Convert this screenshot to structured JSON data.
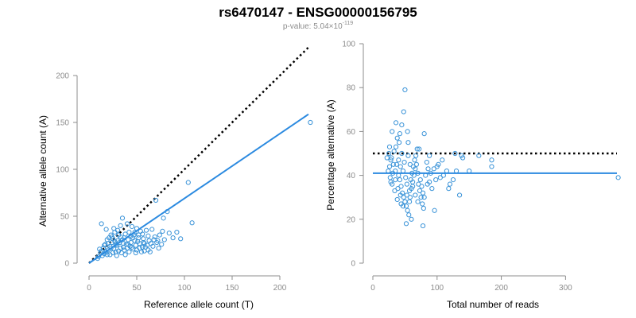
{
  "header": {
    "title": "rs6470147 - ENSG00000156795",
    "subtitle_prefix": "p-value: 5.04×10",
    "subtitle_exponent": "-119"
  },
  "colors": {
    "points": "#3a93d8",
    "fit_line": "#2b8ae0",
    "reference_line": "#000000",
    "axes": "#8c8c8c"
  },
  "chart_data": [
    {
      "type": "scatter",
      "xlabel": "Reference allele count (T)",
      "ylabel": "Alternative allele count (A)",
      "xlim": [
        0,
        230
      ],
      "ylim": [
        0,
        200
      ],
      "xticks": [
        0,
        50,
        100,
        150,
        200
      ],
      "yticks": [
        0,
        50,
        100,
        150,
        200
      ],
      "points": [
        [
          232,
          150
        ],
        [
          104,
          86
        ],
        [
          108,
          43
        ],
        [
          82,
          55
        ],
        [
          70,
          67
        ],
        [
          78,
          48
        ],
        [
          64,
          12
        ],
        [
          62,
          29
        ],
        [
          72,
          24
        ],
        [
          66,
          36
        ],
        [
          13,
          42
        ],
        [
          18,
          36
        ],
        [
          35,
          48
        ],
        [
          40,
          42
        ],
        [
          45,
          39
        ],
        [
          52,
          27
        ],
        [
          56,
          31
        ],
        [
          58,
          21
        ],
        [
          60,
          35
        ],
        [
          48,
          24
        ],
        [
          44,
          22
        ],
        [
          38,
          31
        ],
        [
          36,
          17
        ],
        [
          33,
          28
        ],
        [
          30,
          24
        ],
        [
          28,
          20
        ],
        [
          26,
          15
        ],
        [
          24,
          22
        ],
        [
          22,
          18
        ],
        [
          20,
          14
        ],
        [
          18,
          12
        ],
        [
          16,
          10
        ],
        [
          14,
          8
        ],
        [
          12,
          11
        ],
        [
          10,
          7
        ],
        [
          9,
          5
        ],
        [
          15,
          16
        ],
        [
          17,
          20
        ],
        [
          19,
          25
        ],
        [
          21,
          27
        ],
        [
          23,
          30
        ],
        [
          25,
          26
        ],
        [
          27,
          33
        ],
        [
          29,
          19
        ],
        [
          31,
          13
        ],
        [
          34,
          11
        ],
        [
          37,
          14
        ],
        [
          39,
          20
        ],
        [
          41,
          25
        ],
        [
          43,
          18
        ],
        [
          46,
          15
        ],
        [
          49,
          19
        ],
        [
          51,
          23
        ],
        [
          53,
          16
        ],
        [
          55,
          12
        ],
        [
          57,
          26
        ],
        [
          59,
          17
        ],
        [
          61,
          19
        ],
        [
          63,
          24
        ],
        [
          65,
          21
        ],
        [
          67,
          18
        ],
        [
          69,
          28
        ],
        [
          71,
          22
        ],
        [
          74,
          30
        ],
        [
          76,
          20
        ],
        [
          79,
          25
        ],
        [
          84,
          32
        ],
        [
          88,
          27
        ],
        [
          92,
          33
        ],
        [
          96,
          26
        ],
        [
          26,
          37
        ],
        [
          30,
          35
        ],
        [
          33,
          40
        ],
        [
          42,
          33
        ],
        [
          47,
          30
        ],
        [
          50,
          37
        ],
        [
          54,
          34
        ],
        [
          32,
          22
        ],
        [
          28,
          12
        ],
        [
          22,
          9
        ],
        [
          20,
          21
        ],
        [
          24,
          28
        ],
        [
          35,
          25
        ],
        [
          38,
          9
        ],
        [
          42,
          12
        ],
        [
          46,
          27
        ],
        [
          48,
          33
        ],
        [
          50,
          14
        ],
        [
          53,
          21
        ],
        [
          56,
          17
        ],
        [
          58,
          13
        ],
        [
          40,
          16
        ],
        [
          44,
          29
        ],
        [
          36,
          21
        ],
        [
          31,
          30
        ],
        [
          27,
          23
        ],
        [
          23,
          16
        ],
        [
          19,
          9
        ],
        [
          16,
          19
        ],
        [
          13,
          13
        ],
        [
          11,
          15
        ],
        [
          25,
          11
        ],
        [
          29,
          8
        ],
        [
          33,
          16
        ],
        [
          37,
          27
        ],
        [
          41,
          20
        ],
        [
          45,
          17
        ],
        [
          49,
          11
        ],
        [
          52,
          30
        ],
        [
          57,
          22
        ],
        [
          62,
          14
        ],
        [
          68,
          25
        ],
        [
          73,
          16
        ],
        [
          77,
          34
        ]
      ],
      "fit_line": {
        "slope": 0.69,
        "intercept": 0
      },
      "reference_line": {
        "slope": 1,
        "intercept": 0
      }
    },
    {
      "type": "scatter",
      "xlabel": "Total number of reads",
      "ylabel": "Percentage alternative (A)",
      "xlim": [
        0,
        380
      ],
      "ylim": [
        0,
        100
      ],
      "xticks": [
        0,
        100,
        200,
        300
      ],
      "yticks": [
        0,
        20,
        40,
        60,
        80,
        100
      ],
      "points": [
        [
          382,
          39
        ],
        [
          50,
          79
        ],
        [
          48,
          69
        ],
        [
          30,
          60
        ],
        [
          38,
          57
        ],
        [
          45,
          63
        ],
        [
          55,
          55
        ],
        [
          72,
          52
        ],
        [
          80,
          59
        ],
        [
          25,
          50
        ],
        [
          28,
          47
        ],
        [
          32,
          45
        ],
        [
          35,
          42
        ],
        [
          40,
          40
        ],
        [
          42,
          38
        ],
        [
          44,
          35
        ],
        [
          46,
          32
        ],
        [
          48,
          30
        ],
        [
          50,
          28
        ],
        [
          52,
          26
        ],
        [
          54,
          24
        ],
        [
          56,
          22
        ],
        [
          58,
          30
        ],
        [
          60,
          34
        ],
        [
          62,
          37
        ],
        [
          64,
          40
        ],
        [
          66,
          43
        ],
        [
          68,
          45
        ],
        [
          70,
          41
        ],
        [
          74,
          38
        ],
        [
          76,
          35
        ],
        [
          78,
          32
        ],
        [
          80,
          30
        ],
        [
          85,
          36
        ],
        [
          90,
          41
        ],
        [
          95,
          43
        ],
        [
          100,
          44
        ],
        [
          105,
          39
        ],
        [
          110,
          40
        ],
        [
          120,
          36
        ],
        [
          125,
          38
        ],
        [
          130,
          42
        ],
        [
          135,
          31
        ],
        [
          140,
          48
        ],
        [
          150,
          42
        ],
        [
          165,
          49
        ],
        [
          185,
          44
        ],
        [
          185,
          47
        ],
        [
          78,
          17
        ],
        [
          96,
          24
        ],
        [
          60,
          20
        ],
        [
          52,
          18
        ],
        [
          44,
          27
        ],
        [
          38,
          29
        ],
        [
          34,
          33
        ],
        [
          30,
          36
        ],
        [
          27,
          39
        ],
        [
          26,
          44
        ],
        [
          29,
          48
        ],
        [
          33,
          51
        ],
        [
          36,
          53
        ],
        [
          40,
          47
        ],
        [
          43,
          44
        ],
        [
          47,
          42
        ],
        [
          51,
          39
        ],
        [
          53,
          36
        ],
        [
          57,
          33
        ],
        [
          59,
          38
        ],
        [
          61,
          41
        ],
        [
          63,
          44
        ],
        [
          65,
          47
        ],
        [
          67,
          49
        ],
        [
          69,
          52
        ],
        [
          71,
          36
        ],
        [
          73,
          33
        ],
        [
          75,
          30
        ],
        [
          77,
          27
        ],
        [
          79,
          25
        ],
        [
          82,
          40
        ],
        [
          86,
          43
        ],
        [
          88,
          37
        ],
        [
          92,
          34
        ],
        [
          98,
          38
        ],
        [
          102,
          45
        ],
        [
          108,
          47
        ],
        [
          115,
          42
        ],
        [
          118,
          34
        ],
        [
          45,
          50
        ],
        [
          49,
          46
        ],
        [
          55,
          49
        ],
        [
          58,
          45
        ],
        [
          41,
          55
        ],
        [
          37,
          45
        ],
        [
          31,
          41
        ],
        [
          28,
          37
        ],
        [
          24,
          42
        ],
        [
          22,
          48
        ],
        [
          26,
          53
        ],
        [
          35,
          38
        ],
        [
          39,
          34
        ],
        [
          43,
          31
        ],
        [
          47,
          26
        ],
        [
          53,
          31
        ],
        [
          57,
          28
        ],
        [
          62,
          35
        ],
        [
          66,
          31
        ],
        [
          70,
          28
        ],
        [
          84,
          46
        ],
        [
          88,
          49
        ],
        [
          54,
          60
        ],
        [
          42,
          59
        ],
        [
          36,
          64
        ],
        [
          128,
          50
        ],
        [
          138,
          49
        ]
      ],
      "fit_line": {
        "y": 41
      },
      "reference_line": {
        "y": 50
      }
    }
  ]
}
